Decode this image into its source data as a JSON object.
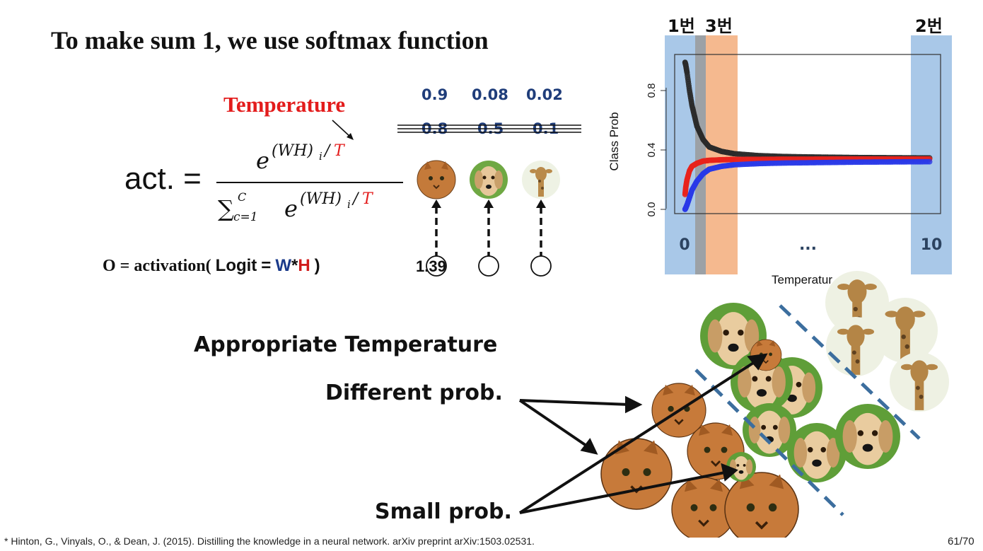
{
  "slide": {
    "title": "To make sum 1, we use softmax function",
    "temperature_label": "Temperature",
    "act_label": "act. =",
    "formula_numerator": "e^{(WH)_i/T}",
    "formula_denominator": "Σ_{c=1}^{C} e^{(WH)_i/T}",
    "softmax_probs": [
      "0.9",
      "0.08",
      "0.02"
    ],
    "struck_probs": [
      "0.8",
      "0.5",
      "0.1"
    ],
    "output_line": {
      "prefix": "O = activation(",
      "logit_word": "Logit",
      "equals": "=",
      "w": "W",
      "star": "*",
      "h": "H",
      "suffix": ")"
    },
    "logit_value": "1.39",
    "appropriate_temperature": "Appropriate Temperature",
    "different_prob": "Different prob.",
    "small_prob": "Small prob.",
    "footnote": "* Hinton, G., Vinyals, O., & Dean, J. (2015). Distilling the knowledge in a neural network. arXiv preprint arXiv:1503.02531.",
    "page_number": "61/70"
  },
  "band_labels": {
    "band1": "1번",
    "band3": "3번",
    "band2": "2번"
  },
  "chart_data": {
    "type": "scatter",
    "ylabel": "Class Prob",
    "xlabel": "Temperatur",
    "x_tick_labels": [
      "0",
      "...",
      "10"
    ],
    "y_tick_labels": [
      "0.0",
      "0.4",
      "0.8"
    ],
    "xlim": [
      0,
      10
    ],
    "ylim": [
      0,
      1
    ],
    "series": [
      {
        "color": "#2b2b2b",
        "x": [
          0.02,
          0.05,
          0.1,
          0.2,
          0.3,
          0.5,
          0.75,
          1,
          1.5,
          2,
          3,
          4,
          5,
          6,
          7,
          8,
          9,
          10
        ],
        "y": [
          0.99,
          0.97,
          0.92,
          0.8,
          0.7,
          0.56,
          0.47,
          0.42,
          0.39,
          0.375,
          0.362,
          0.356,
          0.353,
          0.351,
          0.349,
          0.348,
          0.347,
          0.346
        ]
      },
      {
        "color": "#e8231c",
        "x": [
          0.02,
          0.05,
          0.1,
          0.2,
          0.3,
          0.5,
          0.75,
          1,
          1.5,
          2,
          3,
          4,
          5,
          6,
          7,
          8,
          9,
          10
        ],
        "y": [
          0.1,
          0.15,
          0.2,
          0.26,
          0.29,
          0.31,
          0.325,
          0.33,
          0.334,
          0.336,
          0.337,
          0.338,
          0.338,
          0.339,
          0.339,
          0.339,
          0.339,
          0.339
        ]
      },
      {
        "color": "#2a3ae8",
        "x": [
          0.02,
          0.05,
          0.1,
          0.2,
          0.3,
          0.5,
          0.75,
          1,
          1.5,
          2,
          3,
          4,
          5,
          6,
          7,
          8,
          9,
          10
        ],
        "y": [
          0.0,
          0.01,
          0.03,
          0.08,
          0.13,
          0.19,
          0.24,
          0.27,
          0.29,
          0.3,
          0.308,
          0.312,
          0.314,
          0.316,
          0.318,
          0.319,
          0.32,
          0.321
        ]
      }
    ]
  }
}
